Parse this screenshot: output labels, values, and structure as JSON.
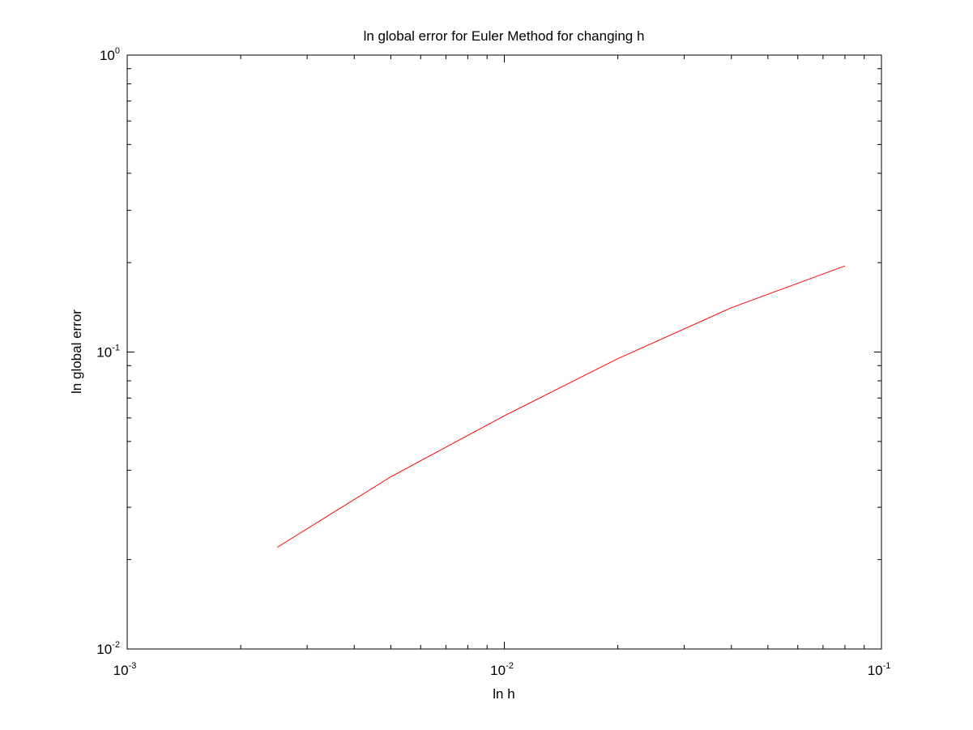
{
  "chart_data": {
    "type": "line",
    "title": "ln global error for Euler Method for changing h",
    "xlabel": "ln h",
    "ylabel": "ln global error",
    "xscale": "log",
    "yscale": "log",
    "xlim": [
      0.001,
      0.1
    ],
    "ylim": [
      0.01,
      1
    ],
    "grid": false,
    "box": true,
    "x_tick_labels": [
      {
        "value": 0.001,
        "base": "10",
        "exp": "-3"
      },
      {
        "value": 0.01,
        "base": "10",
        "exp": "-2"
      },
      {
        "value": 0.1,
        "base": "10",
        "exp": "-1"
      }
    ],
    "y_tick_labels": [
      {
        "value": 0.01,
        "base": "10",
        "exp": "-2"
      },
      {
        "value": 0.1,
        "base": "10",
        "exp": "-1"
      },
      {
        "value": 1,
        "base": "10",
        "exp": "0"
      }
    ],
    "series": [
      {
        "color": "#ff0000",
        "x": [
          0.0025,
          0.005,
          0.01,
          0.02,
          0.04,
          0.08
        ],
        "y": [
          0.022,
          0.038,
          0.061,
          0.095,
          0.141,
          0.195
        ]
      }
    ]
  }
}
